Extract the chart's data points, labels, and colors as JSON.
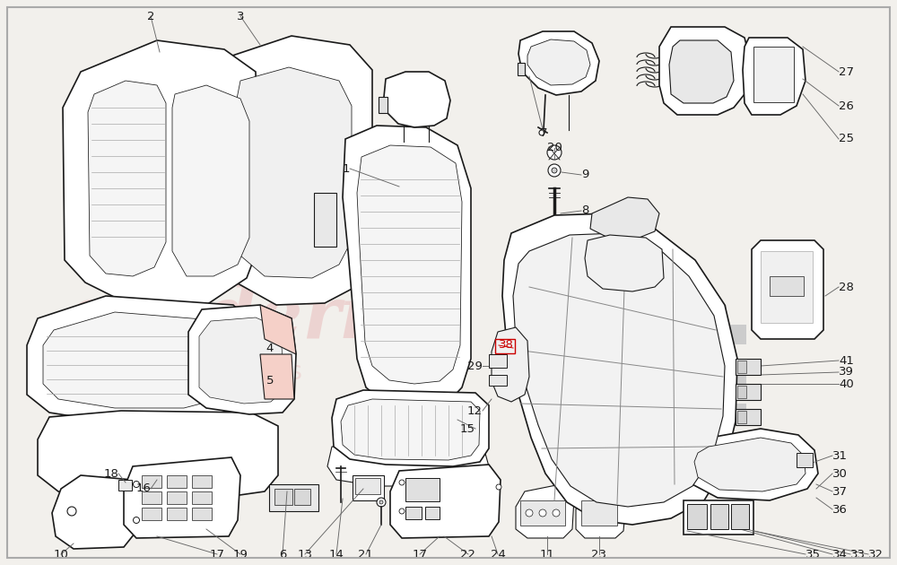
{
  "bg_color": "#f2f0ec",
  "line_color": "#1a1a1a",
  "line_color_light": "#888888",
  "wm_color1": "#e8b8b8",
  "wm_color2": "#d4d4d4",
  "figsize": [
    10.0,
    6.3
  ],
  "dpi": 100,
  "red_label_color": "#cc0000"
}
